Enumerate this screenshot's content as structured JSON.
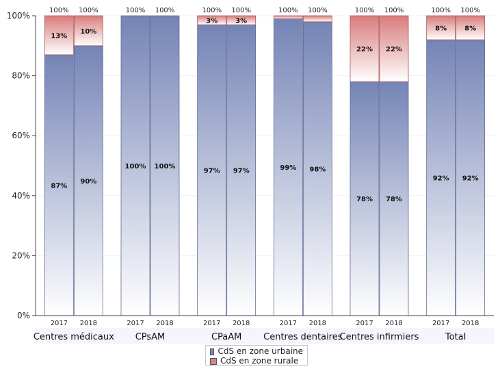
{
  "chart_data": {
    "type": "bar",
    "stacked": true,
    "title": "",
    "xlabel": "",
    "ylabel": "",
    "ylim": [
      0,
      100
    ],
    "y_ticks": [
      "0%",
      "20%",
      "40%",
      "60%",
      "80%",
      "100%"
    ],
    "y_tick_values": [
      0,
      20,
      40,
      60,
      80,
      100
    ],
    "grid": true,
    "legend_position": "bottom",
    "groups": [
      {
        "label": "Centres médicaux",
        "bars": [
          {
            "year": "2017",
            "urban": 87,
            "rural": 13,
            "urban_label": "87%",
            "rural_label": "13%",
            "total_label": "100%"
          },
          {
            "year": "2018",
            "urban": 90,
            "rural": 10,
            "urban_label": "90%",
            "rural_label": "10%",
            "total_label": "100%"
          }
        ]
      },
      {
        "label": "CPsAM",
        "bars": [
          {
            "year": "2017",
            "urban": 100,
            "rural": 0,
            "urban_label": "100%",
            "rural_label": "",
            "total_label": "100%"
          },
          {
            "year": "2018",
            "urban": 100,
            "rural": 0,
            "urban_label": "100%",
            "rural_label": "",
            "total_label": "100%"
          }
        ]
      },
      {
        "label": "CPaAM",
        "bars": [
          {
            "year": "2017",
            "urban": 97,
            "rural": 3,
            "urban_label": "97%",
            "rural_label": "3%",
            "total_label": "100%"
          },
          {
            "year": "2018",
            "urban": 97,
            "rural": 3,
            "urban_label": "97%",
            "rural_label": "3%",
            "total_label": "100%"
          }
        ]
      },
      {
        "label": "Centres dentaires",
        "bars": [
          {
            "year": "2017",
            "urban": 99,
            "rural": 1,
            "urban_label": "99%",
            "rural_label": "",
            "total_label": "100%"
          },
          {
            "year": "2018",
            "urban": 98,
            "rural": 2,
            "urban_label": "98%",
            "rural_label": "",
            "total_label": "100%"
          }
        ]
      },
      {
        "label": "Centres infirmiers",
        "bars": [
          {
            "year": "2017",
            "urban": 78,
            "rural": 22,
            "urban_label": "78%",
            "rural_label": "22%",
            "total_label": "100%"
          },
          {
            "year": "2018",
            "urban": 78,
            "rural": 22,
            "urban_label": "78%",
            "rural_label": "22%",
            "total_label": "100%"
          }
        ]
      },
      {
        "label": "Total",
        "bars": [
          {
            "year": "2017",
            "urban": 92,
            "rural": 8,
            "urban_label": "92%",
            "rural_label": "8%",
            "total_label": "100%"
          },
          {
            "year": "2018",
            "urban": 92,
            "rural": 8,
            "urban_label": "92%",
            "rural_label": "8%",
            "total_label": "100%"
          }
        ]
      }
    ],
    "series": [
      {
        "name": "CdS en zone urbaine",
        "key": "urban",
        "color": "#7b88b8"
      },
      {
        "name": "CdS en zone rurale",
        "key": "rural",
        "color": "#d98585"
      }
    ]
  }
}
